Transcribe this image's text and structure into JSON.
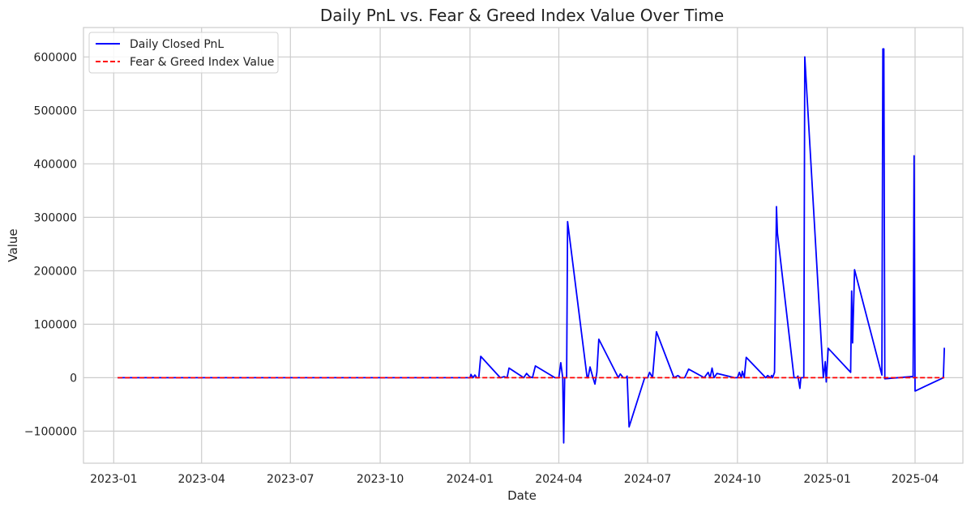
{
  "chart_data": {
    "type": "line",
    "title": "Daily PnL vs. Fear & Greed Index Value Over Time",
    "xlabel": "Date",
    "ylabel": "Value",
    "x_range": [
      "2022-12-01",
      "2025-05-20"
    ],
    "ylim": [
      -160000,
      655000
    ],
    "grid": true,
    "legend_position": "top-left",
    "x_ticks": [
      "2023-01",
      "2023-04",
      "2023-07",
      "2023-10",
      "2024-01",
      "2024-04",
      "2024-07",
      "2024-10",
      "2025-01",
      "2025-04"
    ],
    "y_ticks": [
      -100000,
      0,
      100000,
      200000,
      300000,
      400000,
      500000,
      600000
    ],
    "y_tick_labels": [
      "−100000",
      "0",
      "100000",
      "200000",
      "300000",
      "400000",
      "500000",
      "600000"
    ],
    "series": [
      {
        "name": "Daily Closed PnL",
        "color": "#0000ff",
        "style": "solid",
        "points": [
          [
            "2023-01-05",
            0
          ],
          [
            "2024-01-01",
            0
          ],
          [
            "2024-01-02",
            6000
          ],
          [
            "2024-01-04",
            0
          ],
          [
            "2024-01-06",
            5000
          ],
          [
            "2024-01-08",
            0
          ],
          [
            "2024-01-10",
            0
          ],
          [
            "2024-01-12",
            40000
          ],
          [
            "2024-02-01",
            0
          ],
          [
            "2024-02-05",
            2000
          ],
          [
            "2024-02-08",
            0
          ],
          [
            "2024-02-10",
            18000
          ],
          [
            "2024-02-25",
            0
          ],
          [
            "2024-02-28",
            8000
          ],
          [
            "2024-03-02",
            2000
          ],
          [
            "2024-03-05",
            0
          ],
          [
            "2024-03-08",
            22000
          ],
          [
            "2024-03-28",
            0
          ],
          [
            "2024-04-01",
            0
          ],
          [
            "2024-04-03",
            28000
          ],
          [
            "2024-04-05",
            0
          ],
          [
            "2024-04-06",
            -122000
          ],
          [
            "2024-04-07",
            0
          ],
          [
            "2024-04-09",
            0
          ],
          [
            "2024-04-10",
            292000
          ],
          [
            "2024-04-30",
            0
          ],
          [
            "2024-05-01",
            0
          ],
          [
            "2024-05-03",
            20000
          ],
          [
            "2024-05-06",
            0
          ],
          [
            "2024-05-08",
            -12000
          ],
          [
            "2024-05-10",
            10000
          ],
          [
            "2024-05-12",
            72000
          ],
          [
            "2024-06-01",
            0
          ],
          [
            "2024-06-03",
            7000
          ],
          [
            "2024-06-06",
            0
          ],
          [
            "2024-06-09",
            0
          ],
          [
            "2024-06-10",
            3000
          ],
          [
            "2024-06-12",
            -92000
          ],
          [
            "2024-06-28",
            0
          ],
          [
            "2024-07-01",
            0
          ],
          [
            "2024-07-03",
            10000
          ],
          [
            "2024-07-06",
            0
          ],
          [
            "2024-07-10",
            86000
          ],
          [
            "2024-07-28",
            0
          ],
          [
            "2024-08-01",
            4000
          ],
          [
            "2024-08-04",
            0
          ],
          [
            "2024-08-08",
            0
          ],
          [
            "2024-08-12",
            16000
          ],
          [
            "2024-08-28",
            0
          ],
          [
            "2024-09-01",
            10000
          ],
          [
            "2024-09-03",
            0
          ],
          [
            "2024-09-05",
            18000
          ],
          [
            "2024-09-07",
            0
          ],
          [
            "2024-09-10",
            8000
          ],
          [
            "2024-09-28",
            0
          ],
          [
            "2024-10-01",
            0
          ],
          [
            "2024-10-03",
            10000
          ],
          [
            "2024-10-05",
            0
          ],
          [
            "2024-10-06",
            12000
          ],
          [
            "2024-10-08",
            0
          ],
          [
            "2024-10-10",
            38000
          ],
          [
            "2024-10-30",
            0
          ],
          [
            "2024-11-01",
            4000
          ],
          [
            "2024-11-04",
            0
          ],
          [
            "2024-11-05",
            4000
          ],
          [
            "2024-11-06",
            0
          ],
          [
            "2024-11-08",
            10000
          ],
          [
            "2024-11-10",
            320000
          ],
          [
            "2024-11-11",
            270000
          ],
          [
            "2024-11-28",
            0
          ],
          [
            "2024-12-01",
            0
          ],
          [
            "2024-12-02",
            3000
          ],
          [
            "2024-12-04",
            -20000
          ],
          [
            "2024-12-05",
            0
          ],
          [
            "2024-12-07",
            0
          ],
          [
            "2024-12-08",
            0
          ],
          [
            "2024-12-09",
            600000
          ],
          [
            "2024-12-28",
            0
          ],
          [
            "2024-12-30",
            30000
          ],
          [
            "2024-12-31",
            -8000
          ],
          [
            "2025-01-02",
            55000
          ],
          [
            "2025-01-25",
            10000
          ],
          [
            "2025-01-26",
            162000
          ],
          [
            "2025-01-27",
            65000
          ],
          [
            "2025-01-29",
            202000
          ],
          [
            "2025-02-26",
            5000
          ],
          [
            "2025-02-27",
            615000
          ],
          [
            "2025-02-28",
            615000
          ],
          [
            "2025-03-01",
            -2000
          ],
          [
            "2025-03-28",
            2000
          ],
          [
            "2025-03-30",
            2000
          ],
          [
            "2025-03-31",
            415000
          ],
          [
            "2025-04-01",
            -25000
          ],
          [
            "2025-04-30",
            0
          ],
          [
            "2025-05-01",
            56000
          ]
        ]
      },
      {
        "name": "Fear & Greed Index Value",
        "color": "#ff0000",
        "style": "dashed",
        "points": [
          [
            "2023-01-05",
            50
          ],
          [
            "2025-05-01",
            50
          ]
        ]
      }
    ]
  }
}
